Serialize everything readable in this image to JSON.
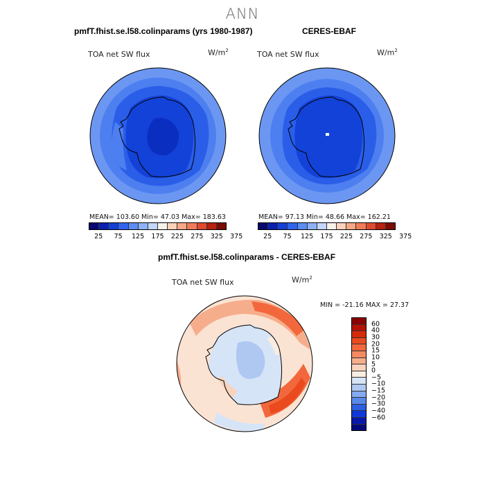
{
  "suptitle": "ANN",
  "panel1": {
    "title": "pmfT.fhist.se.l58.colinparams (yrs 1980-1987)",
    "variable": "TOA net SW flux",
    "units": "W/m",
    "units_sup": "2",
    "stats": "MEAN= 103.60   Min=  47.03   Max= 183.63"
  },
  "panel2": {
    "title": "CERES-EBAF",
    "variable": "TOA net SW flux",
    "units": "W/m",
    "units_sup": "2",
    "stats": "MEAN=  97.13   Min=  48.66   Max= 162.21"
  },
  "panel3": {
    "title": "pmfT.fhist.se.l58.colinparams - CERES-EBAF",
    "variable": "TOA net SW flux",
    "units": "W/m",
    "units_sup": "2",
    "stats": "MIN = -21.16 MAX =  27.37"
  },
  "colorbar_top": {
    "ticks": [
      "25",
      "75",
      "125",
      "175",
      "225",
      "275",
      "325",
      "375"
    ],
    "colors": [
      "#08086e",
      "#0b1fb0",
      "#1440d6",
      "#2f64ec",
      "#5b8df3",
      "#8fb2f7",
      "#c3d6fb",
      "#f7f2ea",
      "#fbd2bb",
      "#f7a987",
      "#f07c59",
      "#e04b2f",
      "#b8200f",
      "#7a0b05"
    ]
  },
  "colorbar_diff": {
    "labels": [
      "60",
      "40",
      "30",
      "20",
      "15",
      "10",
      "5",
      "0",
      "−5",
      "−10",
      "−15",
      "−20",
      "−30",
      "−40",
      "−60"
    ],
    "colors": [
      "#8b0000",
      "#b51204",
      "#d42a0a",
      "#ea4a1e",
      "#f2683c",
      "#f48a62",
      "#f6ad8c",
      "#f9d3bd",
      "#fbece1",
      "#d6e4f7",
      "#aec8f2",
      "#85aaef",
      "#5a87ea",
      "#2e5ee4",
      "#1038d8",
      "#0718a8",
      "#050a7a"
    ]
  }
}
